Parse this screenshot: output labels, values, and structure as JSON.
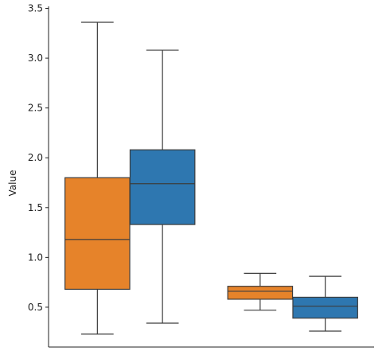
{
  "chart_data": {
    "type": "box",
    "title": "",
    "xlabel": "",
    "ylabel": "Value",
    "ylim": [
      0.1,
      3.52
    ],
    "yticks": [
      0.5,
      1.0,
      1.5,
      2.0,
      2.5,
      3.0,
      3.5
    ],
    "ytick_labels": [
      "0.5",
      "1.0",
      "1.5",
      "2.0",
      "2.5",
      "3.0",
      "3.5"
    ],
    "grid": false,
    "legend": false,
    "groups": [
      {
        "boxes": [
          {
            "color": "#e6832a",
            "whisker_low": 0.23,
            "q1": 0.68,
            "median": 1.18,
            "q3": 1.8,
            "whisker_high": 3.36
          },
          {
            "color": "#2e77b0",
            "whisker_low": 0.34,
            "q1": 1.33,
            "median": 1.74,
            "q3": 2.08,
            "whisker_high": 3.08
          }
        ]
      },
      {
        "boxes": [
          {
            "color": "#e6832a",
            "whisker_low": 0.47,
            "q1": 0.58,
            "median": 0.66,
            "q3": 0.71,
            "whisker_high": 0.84
          },
          {
            "color": "#2e77b0",
            "whisker_low": 0.26,
            "q1": 0.39,
            "median": 0.51,
            "q3": 0.6,
            "whisker_high": 0.81
          }
        ]
      }
    ]
  }
}
